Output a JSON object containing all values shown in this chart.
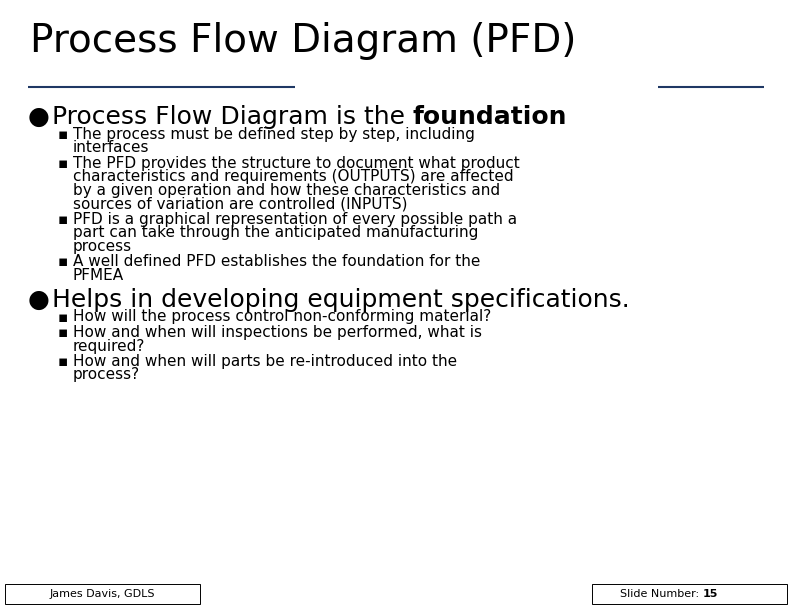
{
  "title": "Process Flow Diagram (PFD)",
  "background_color": "#ffffff",
  "title_color": "#000000",
  "title_fontsize": 28,
  "separator_color": "#1F3864",
  "bullet1_normal": "Process Flow Diagram is the ",
  "bullet1_bold": "foundation",
  "bullet1_fontsize": 18,
  "sub_bullets_1": [
    "The process must be defined step by step, including\ninterfaces",
    "The PFD provides the structure to document what product\ncharacteristics and requirements (OUTPUTS) are affected\nby a given operation and how these characteristics and\nsources of variation are controlled (INPUTS)",
    "PFD is a graphical representation of every possible path a\npart can take through the anticipated manufacturing\nprocess",
    "A well defined PFD establishes the foundation for the\nPFMEA"
  ],
  "bullet2": "Helps in developing equipment specifications.",
  "bullet2_fontsize": 18,
  "sub_bullets_2": [
    "How will the process control non-conforming material?",
    "How and when will inspections be performed, what is\nrequired?",
    "How and when will parts be re-introduced into the\nprocess?"
  ],
  "sub_bullet_fontsize": 11,
  "footer_left": "James Davis, GDLS",
  "footer_right_normal": "Slide Number: ",
  "footer_right_bold": "15",
  "footer_fontsize": 8,
  "text_color": "#000000"
}
